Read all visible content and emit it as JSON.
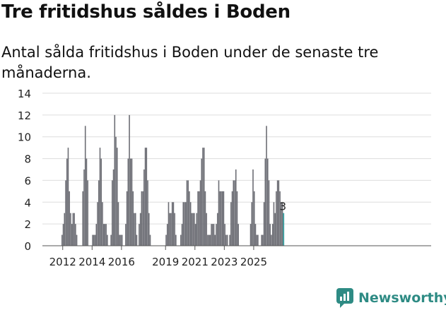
{
  "chart_data": {
    "type": "bar",
    "title": "Tre fritidshus såldes i Boden",
    "subtitle": "Antal sålda fritidshus i Boden under de senaste tre månaderna.",
    "xlabel": "",
    "ylabel": "",
    "ylim": [
      0,
      14
    ],
    "yticks": [
      "0",
      "2",
      "4",
      "6",
      "8",
      "10",
      "12",
      "14"
    ],
    "xticks": [
      {
        "label": "2012",
        "year": 2012
      },
      {
        "label": "2014",
        "year": 2014
      },
      {
        "label": "2016",
        "year": 2016
      },
      {
        "label": "2019",
        "year": 2019
      },
      {
        "label": "2021",
        "year": 2021
      },
      {
        "label": "2023",
        "year": 2023
      },
      {
        "label": "2025",
        "year": 2025
      }
    ],
    "start": "2011-12",
    "values": [
      1,
      2,
      3,
      6,
      8,
      9,
      5,
      3,
      2,
      3,
      3,
      2,
      1,
      0,
      0,
      0,
      0,
      5,
      7,
      11,
      8,
      6,
      0,
      0,
      0,
      1,
      1,
      1,
      2,
      4,
      6,
      9,
      8,
      4,
      2,
      2,
      2,
      1,
      0,
      0,
      1,
      6,
      7,
      12,
      10,
      9,
      4,
      1,
      1,
      1,
      0,
      0,
      2,
      5,
      8,
      12,
      8,
      8,
      5,
      3,
      3,
      1,
      0,
      2,
      3,
      5,
      5,
      7,
      9,
      9,
      6,
      3,
      1,
      0,
      0,
      0,
      0,
      0,
      0,
      0,
      0,
      0,
      0,
      0,
      0,
      1,
      2,
      4,
      3,
      3,
      4,
      4,
      3,
      1,
      0,
      0,
      0,
      1,
      2,
      4,
      4,
      4,
      6,
      6,
      5,
      4,
      3,
      3,
      3,
      2,
      3,
      5,
      5,
      6,
      8,
      9,
      9,
      5,
      3,
      1,
      1,
      1,
      2,
      2,
      2,
      1,
      2,
      3,
      6,
      5,
      5,
      5,
      5,
      2,
      1,
      1,
      0,
      1,
      4,
      5,
      6,
      6,
      7,
      5,
      2,
      0,
      0,
      0,
      0,
      0,
      0,
      0,
      0,
      0,
      2,
      4,
      7,
      5,
      2,
      1,
      1,
      0,
      0,
      1,
      1,
      4,
      8,
      11,
      8,
      6,
      2,
      1,
      2,
      4,
      3,
      5,
      6,
      6,
      5,
      4,
      4,
      3
    ],
    "last_value_label": "3",
    "colors": {
      "bar": "#6d6e75",
      "highlight": "#2e9fa0",
      "grid": "#dddddd",
      "axis": "#555555",
      "brand": "#2e8b84"
    }
  },
  "brand": {
    "name": "Newsworthy",
    "icon": "newsworthy-logo-icon"
  }
}
